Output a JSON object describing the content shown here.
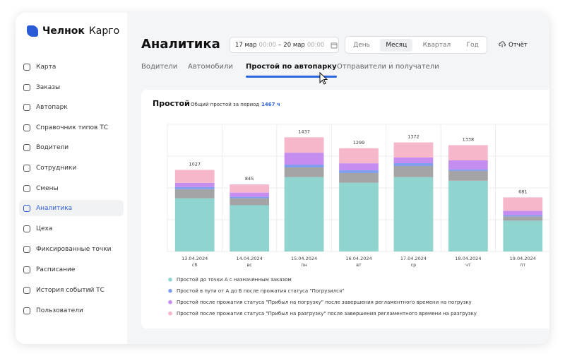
{
  "sidebar": {
    "brand": [
      "Челнок",
      "Карго"
    ],
    "nav": [
      "Карта",
      "Заказы",
      "Автопарк",
      "Справочник типов ТС",
      "Водители",
      "Сотрудники",
      "Смены",
      "Аналитика",
      "Цеха",
      "Фиксированные точки",
      "Расписание",
      "История событий ТС",
      "Пользователи"
    ],
    "active": 7
  },
  "header": {
    "title": "Аналитика",
    "date_range": {
      "from_date": "17 мар",
      "from_time": "00:00",
      "separator": "–",
      "to_date": "20 мар",
      "to_time": "00:00"
    },
    "periods": [
      "День",
      "Месяц",
      "Квартал",
      "Год"
    ],
    "active_period": 1,
    "report": "Отчёт"
  },
  "tabs": {
    "items": [
      "Водители",
      "Автомобили",
      "Простой по автопарку",
      "Отправители и получатели"
    ],
    "active": 2
  },
  "chart_data": {
    "type": "stacked_bar",
    "title": "Простой",
    "subtitle": "Общий простой за период",
    "total": "1467 ч",
    "categories": [
      "13.04.2024",
      "14.04.2024",
      "15.04.2024",
      "16.04.2024",
      "17.04.2024",
      "18.04.2024",
      "19.04.2024"
    ],
    "category_sublabels": [
      "сб",
      "вс",
      "пн",
      "вт",
      "ср",
      "чт",
      "пт"
    ],
    "totals": [
      1027,
      845,
      1437,
      1299,
      1372,
      1338,
      681
    ],
    "ylim": [
      0,
      1600
    ],
    "series": [
      {
        "name": "Простой до точки А с назначенным заказом",
        "color": "#90d4d0",
        "values": [
          670,
          582,
          935,
          864,
          935,
          891,
          388
        ]
      },
      {
        "name": null,
        "color": "#a4a4a6",
        "values": [
          115,
          88,
          123,
          123,
          141,
          123,
          53
        ]
      },
      {
        "name": "Простой в пути от А до Б после прожатия статуса \"Погрузился\"",
        "color": "#7f9ef0",
        "values": [
          26,
          18,
          35,
          35,
          35,
          18,
          18
        ]
      },
      {
        "name": "Простой после прожатия статуса \"Прибыл на погрузку\" после завершения регламентного времени на погрузку",
        "color": "#c48def",
        "values": [
          53,
          53,
          150,
          88,
          71,
          115,
          53
        ]
      },
      {
        "name": "Простой после прожатия статуса \"Прибыл на разгрузку\" после завершения регламентного времени на разгрузку",
        "color": "#f5b7c9",
        "values": [
          163,
          104,
          194,
          189,
          190,
          191,
          169
        ]
      }
    ]
  }
}
